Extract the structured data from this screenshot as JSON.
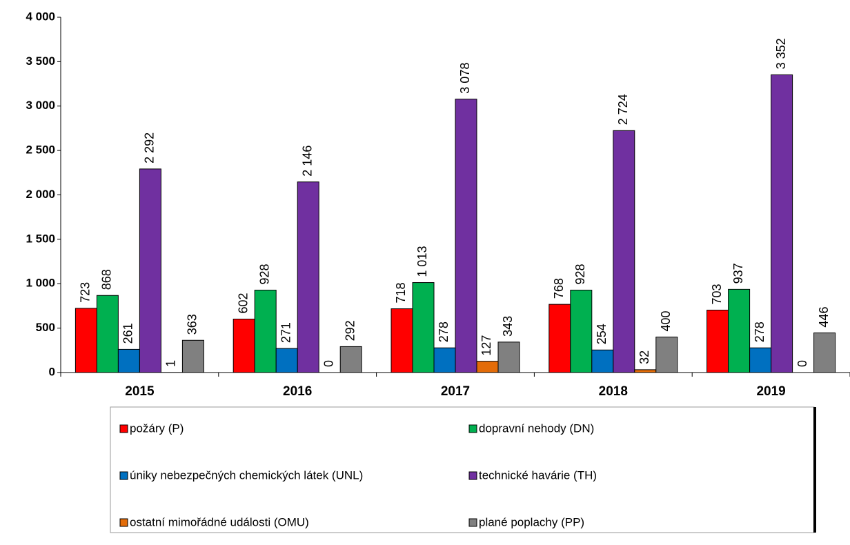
{
  "chart_data": {
    "type": "bar",
    "categories": [
      "2015",
      "2016",
      "2017",
      "2018",
      "2019"
    ],
    "series": [
      {
        "name": "požáry (P)",
        "color": "#ff0000",
        "values": [
          723,
          602,
          718,
          768,
          703
        ],
        "value_labels": [
          "723",
          "602",
          "718",
          "768",
          "703"
        ]
      },
      {
        "name": "dopravní nehody (DN)",
        "color": "#00b050",
        "values": [
          868,
          928,
          1013,
          928,
          937
        ],
        "value_labels": [
          "868",
          "928",
          "1 013",
          "928",
          "937"
        ]
      },
      {
        "name": "úniky nebezpečných chemických látek (UNL)",
        "color": "#0070c0",
        "values": [
          261,
          271,
          278,
          254,
          278
        ],
        "value_labels": [
          "261",
          "271",
          "278",
          "254",
          "278"
        ]
      },
      {
        "name": "technické havárie (TH)",
        "color": "#7030a0",
        "values": [
          2292,
          2146,
          3078,
          2724,
          3352
        ],
        "value_labels": [
          "2 292",
          "2 146",
          "3 078",
          "2 724",
          "3 352"
        ]
      },
      {
        "name": "ostatní mimořádné události (OMU)",
        "color": "#e36c09",
        "values": [
          1,
          0,
          127,
          32,
          0
        ],
        "value_labels": [
          "1",
          "0",
          "127",
          "32",
          "0"
        ]
      },
      {
        "name": "plané poplachy (PP)",
        "color": "#808080",
        "values": [
          363,
          292,
          343,
          400,
          446
        ],
        "value_labels": [
          "363",
          "292",
          "343",
          "400",
          "446"
        ]
      }
    ],
    "ylim": [
      0,
      4000
    ],
    "yticks": [
      0,
      500,
      {
        "value": 1000,
        "label": "1 000"
      },
      {
        "value": 1500,
        "label": "1 500"
      },
      {
        "value": 2000,
        "label": "2 000"
      },
      {
        "value": 2500,
        "label": "2 500"
      },
      {
        "value": 3000,
        "label": "3 000"
      },
      {
        "value": 3500,
        "label": "3 500"
      },
      {
        "value": 4000,
        "label": "4 000"
      }
    ],
    "grid": false
  }
}
